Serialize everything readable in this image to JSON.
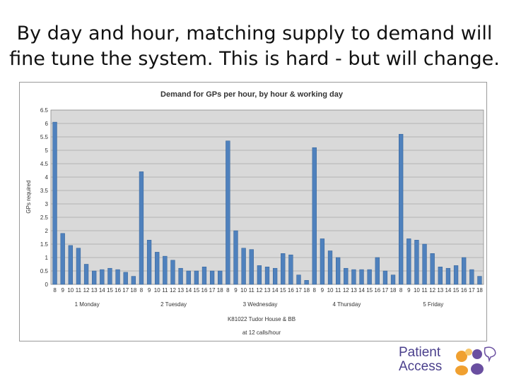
{
  "slide": {
    "title_line1": "By day and hour, matching supply to demand will",
    "title_line2": "fine tune the system.  This is hard - but will change."
  },
  "logo": {
    "line1": "Patient",
    "line2": "Access",
    "colors": {
      "text": "#4a3f8c",
      "orange": "#f0a030",
      "purple": "#6a4fa0"
    }
  },
  "chart_data": {
    "type": "bar",
    "title": "Demand for GPs per hour, by hour & working day",
    "ylabel": "GPs required",
    "xlabel_line1": "K81022 Tudor House & BB",
    "xlabel_line2": "at  12 calls/hour",
    "ylim": [
      0,
      6.5
    ],
    "yticks": [
      "0",
      "0.5",
      "1",
      "1.5",
      "2",
      "2.5",
      "3",
      "3.5",
      "4",
      "4.5",
      "5",
      "5.5",
      "6",
      "6.5"
    ],
    "grid": true,
    "bar_color": "#4f81bd",
    "plot_bg": "#d9d9d9",
    "days": [
      {
        "label": "1 Monday",
        "hours": [
          "8",
          "9",
          "10",
          "11",
          "12",
          "13",
          "14",
          "15",
          "16",
          "17",
          "18"
        ],
        "values": [
          6.05,
          1.9,
          1.45,
          1.35,
          0.75,
          0.5,
          0.55,
          0.6,
          0.55,
          0.45,
          0.3
        ]
      },
      {
        "label": "2 Tuesday",
        "hours": [
          "8",
          "9",
          "10",
          "11",
          "12",
          "13",
          "14",
          "15",
          "16",
          "17",
          "18"
        ],
        "values": [
          4.2,
          1.65,
          1.2,
          1.05,
          0.9,
          0.6,
          0.5,
          0.5,
          0.65,
          0.5,
          0.5
        ]
      },
      {
        "label": "3 Wednesday",
        "hours": [
          "8",
          "9",
          "10",
          "11",
          "12",
          "13",
          "14",
          "15",
          "16",
          "17",
          "18"
        ],
        "values": [
          5.35,
          2.0,
          1.35,
          1.3,
          0.7,
          0.65,
          0.6,
          1.15,
          1.1,
          0.35,
          0.15
        ]
      },
      {
        "label": "4 Thursday",
        "hours": [
          "8",
          "9",
          "10",
          "11",
          "12",
          "13",
          "14",
          "15",
          "16",
          "17",
          "18"
        ],
        "values": [
          5.1,
          1.7,
          1.25,
          1.0,
          0.6,
          0.55,
          0.55,
          0.55,
          1.0,
          0.5,
          0.35
        ]
      },
      {
        "label": "5 Friday",
        "hours": [
          "8",
          "9",
          "10",
          "11",
          "12",
          "13",
          "14",
          "15",
          "16",
          "17",
          "18"
        ],
        "values": [
          5.6,
          1.7,
          1.65,
          1.5,
          1.15,
          0.65,
          0.6,
          0.7,
          1.0,
          0.55,
          0.3
        ]
      }
    ]
  }
}
